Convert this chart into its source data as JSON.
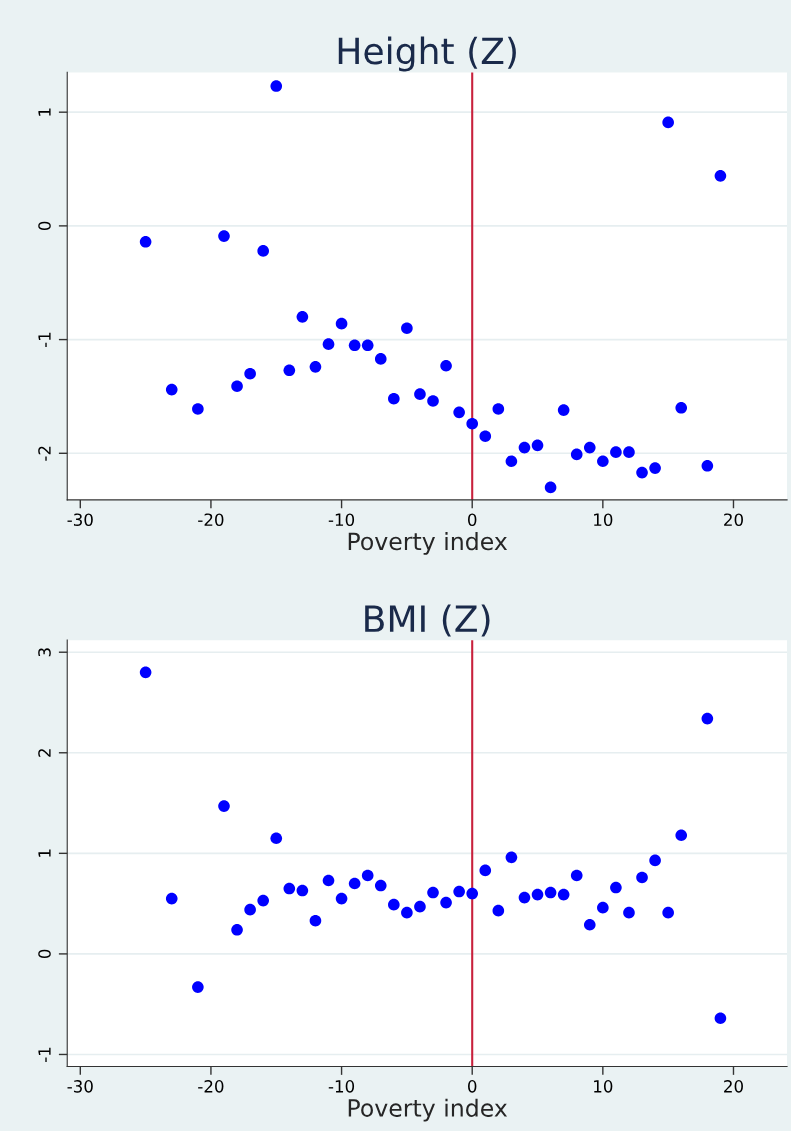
{
  "chart_data": [
    {
      "type": "scatter",
      "title": "Height (Z)",
      "xlabel": "Poverty index",
      "x": [
        -25,
        -23,
        -21,
        -19,
        -18,
        -17,
        -16,
        -15,
        -14,
        -13,
        -12,
        -11,
        -10,
        -9,
        -8,
        -7,
        -6,
        -5,
        -4,
        -3,
        -2,
        -1,
        0,
        1,
        2,
        3,
        4,
        5,
        6,
        7,
        8,
        9,
        10,
        11,
        12,
        13,
        14,
        15,
        16,
        18,
        19
      ],
      "series": [
        {
          "color": "#0000ff",
          "values": [
            -0.14,
            -1.44,
            -1.61,
            -0.09,
            -1.41,
            -1.3,
            -0.22,
            1.23,
            -1.27,
            -0.8,
            -1.24,
            -1.04,
            -0.86,
            -1.05,
            -1.05,
            -1.17,
            -1.52,
            -0.9,
            -1.48,
            -1.54,
            -1.23,
            -1.64,
            -1.74,
            -1.85,
            -1.61,
            -2.07,
            -1.95,
            -1.93,
            -2.3,
            -1.62,
            -2.01,
            -1.95,
            -2.07,
            -1.99,
            -1.99,
            -2.17,
            -2.13,
            0.91,
            -1.6,
            -2.11,
            0.44
          ]
        }
      ],
      "xlim": [
        -31,
        24.1
      ],
      "ylim": [
        -2.41,
        1.35
      ],
      "xticks": [
        -30,
        -20,
        -10,
        0,
        10,
        20
      ],
      "yticks": [
        -2,
        -1,
        0,
        1
      ],
      "ref_lines": [
        {
          "axis": "x",
          "value": 0,
          "color": "#c8203c"
        }
      ],
      "grid": "y",
      "marker": "circle"
    },
    {
      "type": "scatter",
      "title": "BMI (Z)",
      "xlabel": "Poverty index",
      "x": [
        -25,
        -23,
        -21,
        -19,
        -18,
        -17,
        -16,
        -15,
        -14,
        -13,
        -12,
        -11,
        -10,
        -9,
        -8,
        -7,
        -6,
        -5,
        -4,
        -3,
        -2,
        -1,
        0,
        1,
        2,
        3,
        4,
        5,
        6,
        7,
        8,
        9,
        10,
        11,
        12,
        13,
        14,
        15,
        16,
        18,
        19
      ],
      "series": [
        {
          "color": "#0000ff",
          "values": [
            2.8,
            0.55,
            -0.33,
            1.47,
            0.24,
            0.44,
            0.53,
            1.15,
            0.65,
            0.63,
            0.33,
            0.73,
            0.55,
            0.7,
            0.78,
            0.68,
            0.49,
            0.41,
            0.47,
            0.61,
            0.51,
            0.62,
            0.6,
            0.83,
            0.43,
            0.96,
            0.56,
            0.59,
            0.61,
            0.59,
            0.78,
            0.29,
            0.46,
            0.66,
            0.41,
            0.76,
            0.93,
            0.41,
            1.18,
            2.34,
            -0.64
          ]
        }
      ],
      "xlim": [
        -31,
        24.1
      ],
      "ylim": [
        -1.12,
        3.12
      ],
      "xticks": [
        -30,
        -20,
        -10,
        0,
        10,
        20
      ],
      "yticks": [
        -1,
        0,
        1,
        2,
        3
      ],
      "ref_lines": [
        {
          "axis": "x",
          "value": 0,
          "color": "#c8203c"
        }
      ],
      "grid": "y",
      "marker": "circle"
    }
  ]
}
